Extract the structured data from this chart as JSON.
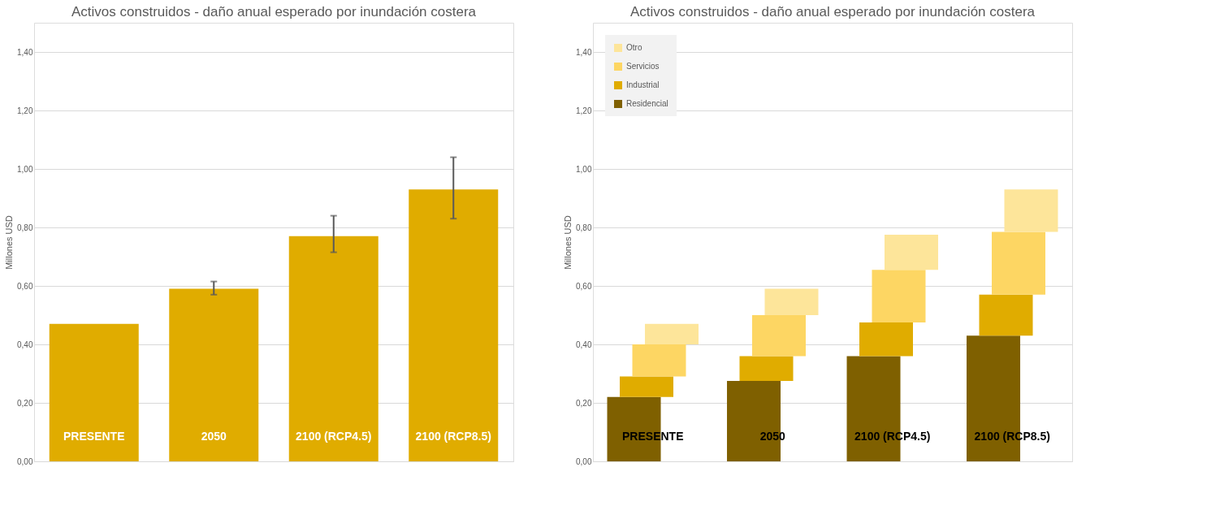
{
  "chart_data": [
    {
      "type": "bar",
      "title": "Activos construidos - daño anual esperado por inundación costera",
      "ylabel": "Millones USD",
      "categories": [
        "PRESENTE",
        "2050",
        "2100 (RCP4.5)",
        "2100 (RCP8.5)"
      ],
      "values": [
        0.47,
        0.59,
        0.77,
        0.93
      ],
      "color": "#e0ac00",
      "errors": [
        null,
        [
          0.57,
          0.615
        ],
        [
          0.715,
          0.84
        ],
        [
          0.83,
          1.04
        ]
      ],
      "ylim": [
        0,
        1.5
      ],
      "yticks": [
        {
          "value": 0,
          "label": "0,00"
        },
        {
          "value": 0.2,
          "label": "0,20"
        },
        {
          "value": 0.4,
          "label": "0,40"
        },
        {
          "value": 0.6,
          "label": "0,60"
        },
        {
          "value": 0.8,
          "label": "0,80"
        },
        {
          "value": 1.0,
          "label": "1,00"
        },
        {
          "value": 1.2,
          "label": "1,20"
        },
        {
          "value": 1.4,
          "label": "1,40"
        }
      ],
      "grid": "y",
      "legend": false
    },
    {
      "type": "bar",
      "stacked": true,
      "title": "Activos construidos - daño anual esperado por inundación costera",
      "ylabel": "Millones USD",
      "categories": [
        "PRESENTE",
        "2050",
        "2100 (RCP4.5)",
        "2100 (RCP8.5)"
      ],
      "series": [
        {
          "name": "Residencial",
          "color": "#7f6000",
          "values": [
            0.22,
            0.275,
            0.36,
            0.43
          ]
        },
        {
          "name": "Industrial",
          "color": "#e0ac00",
          "values": [
            0.07,
            0.085,
            0.115,
            0.14
          ]
        },
        {
          "name": "Servicios",
          "color": "#fdd663",
          "values": [
            0.11,
            0.14,
            0.18,
            0.215
          ]
        },
        {
          "name": "Otro",
          "color": "#fde59a",
          "values": [
            0.07,
            0.09,
            0.12,
            0.145
          ]
        }
      ],
      "ylim": [
        0,
        1.5
      ],
      "yticks": [
        {
          "value": 0,
          "label": "0,00"
        },
        {
          "value": 0.2,
          "label": "0,20"
        },
        {
          "value": 0.4,
          "label": "0,40"
        },
        {
          "value": 0.6,
          "label": "0,60"
        },
        {
          "value": 0.8,
          "label": "0,80"
        },
        {
          "value": 1.0,
          "label": "1,00"
        },
        {
          "value": 1.2,
          "label": "1,20"
        },
        {
          "value": 1.4,
          "label": "1,40"
        }
      ],
      "grid": "y",
      "legend": "top left"
    }
  ]
}
